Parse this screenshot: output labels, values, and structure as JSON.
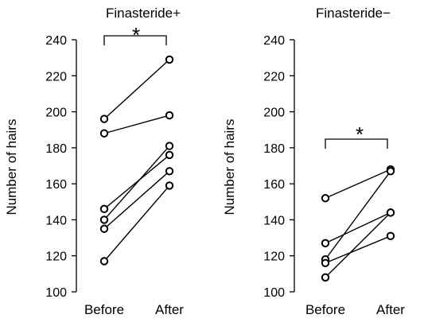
{
  "chart_data": [
    {
      "type": "line",
      "title": "Finasteride+",
      "ylabel": "Number of hairs",
      "categories": [
        "Before",
        "After"
      ],
      "ylim": [
        100,
        240
      ],
      "yticks": [
        "100",
        "120",
        "140",
        "160",
        "180",
        "200",
        "220",
        "240"
      ],
      "significance": "*",
      "pairs": [
        {
          "values": [
            196,
            229
          ]
        },
        {
          "values": [
            188,
            198
          ]
        },
        {
          "values": [
            146,
            176
          ]
        },
        {
          "values": [
            140,
            181
          ]
        },
        {
          "values": [
            135,
            167
          ]
        },
        {
          "values": [
            117,
            159
          ]
        }
      ]
    },
    {
      "type": "line",
      "title": "Finasteride−",
      "ylabel": "Number of hairs",
      "categories": [
        "Before",
        "After"
      ],
      "ylim": [
        100,
        240
      ],
      "yticks": [
        "100",
        "120",
        "140",
        "160",
        "180",
        "200",
        "220",
        "240"
      ],
      "significance": "*",
      "pairs": [
        {
          "values": [
            152,
            168
          ]
        },
        {
          "values": [
            127,
            144
          ]
        },
        {
          "values": [
            118,
            167
          ]
        },
        {
          "values": [
            116,
            131
          ]
        },
        {
          "values": [
            108,
            144
          ]
        }
      ]
    }
  ]
}
